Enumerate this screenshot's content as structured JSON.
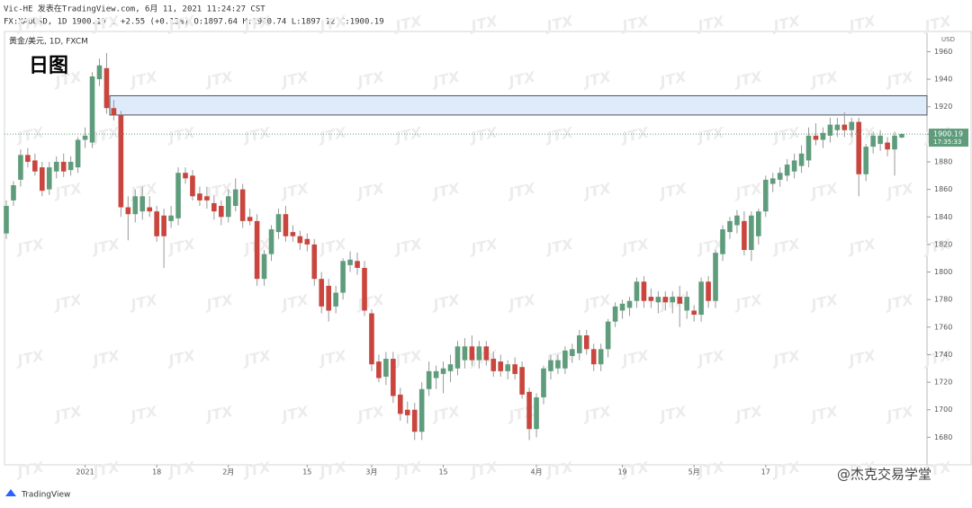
{
  "header": {
    "publisher": "Vic-HE 发表在TradingView.com, 6月 11, 2021 11:24:27 CST",
    "symbol_line": "FX:XAUUSD, 1D 1900.19 ▲ +2.55 (+0.13%) O:1897.64 H:1900.74 L:1897.12 C:1900.19"
  },
  "chart_data": {
    "type": "candlestick",
    "title": "黄金/美元, 1D, FXCM",
    "annotation": "日图",
    "y_axis_label": "USD",
    "price_time": "17:35:33",
    "watermark": "JTX",
    "credit": "@杰克交易学堂",
    "logo": "TradingView",
    "up_color": "#5e9c7b",
    "down_color": "#c9453d",
    "zone_color": "#ddebfb",
    "zone": [
      1914,
      1928
    ],
    "ylim": [
      1660,
      1974
    ],
    "yticks": [
      1680,
      1700,
      1720,
      1740,
      1760,
      1780,
      1800,
      1820,
      1840,
      1860,
      1880,
      1900,
      1920,
      1940,
      1960
    ],
    "categories": [
      null,
      null,
      null,
      null,
      null,
      null,
      null,
      null,
      null,
      null,
      null,
      "2021",
      null,
      null,
      null,
      null,
      null,
      null,
      null,
      null,
      null,
      "18",
      null,
      null,
      null,
      null,
      null,
      null,
      null,
      null,
      null,
      "2月",
      null,
      null,
      null,
      null,
      null,
      null,
      null,
      null,
      null,
      null,
      "15",
      null,
      null,
      null,
      null,
      null,
      null,
      null,
      null,
      "3月",
      null,
      null,
      null,
      null,
      null,
      null,
      null,
      null,
      null,
      "15",
      null,
      null,
      null,
      null,
      null,
      null,
      null,
      null,
      null,
      null,
      null,
      null,
      "4月",
      null,
      null,
      null,
      null,
      null,
      null,
      null,
      null,
      null,
      null,
      null,
      "19",
      null,
      null,
      null,
      null,
      null,
      null,
      null,
      null,
      null,
      "5月",
      null,
      null,
      null,
      null,
      null,
      null,
      null,
      null,
      null,
      "17",
      null,
      null,
      null,
      null,
      null,
      null,
      null,
      null,
      null,
      null,
      null,
      null,
      null,
      null,
      null,
      null,
      null,
      null,
      null
    ],
    "open": [
      1828,
      1852,
      1867,
      1885,
      1881,
      1876,
      1860,
      1873,
      1880,
      1874,
      1876,
      1896,
      1894,
      1940,
      1948,
      1919,
      1914,
      1847,
      1842,
      1844,
      1847,
      1844,
      1841,
      1837,
      1839,
      1872,
      1870,
      1857,
      1855,
      1850,
      1848,
      1840,
      1848,
      1860,
      1840,
      1837,
      1795,
      1813,
      1829,
      1842,
      1829,
      1826,
      1824,
      1820,
      1795,
      1790,
      1775,
      1785,
      1805,
      1808,
      1803,
      1770,
      1735,
      1724,
      1737,
      1711,
      1700,
      1700,
      1684,
      1715,
      1723,
      1726,
      1728,
      1730,
      1736,
      1746,
      1736,
      1746,
      1737,
      1735,
      1728,
      1733,
      1731,
      1713,
      1686,
      1709,
      1728,
      1730,
      1730,
      1739,
      1741,
      1754,
      1744,
      1733,
      1744,
      1764,
      1772,
      1774,
      1779,
      1793,
      1782,
      1778,
      1782,
      1778,
      1782,
      1772,
      1772,
      1769,
      1793,
      1779,
      1813,
      1829,
      1834,
      1837,
      1816,
      1826,
      1844,
      1864,
      1867,
      1870,
      1873,
      1877,
      1881,
      1899,
      1896,
      1899,
      1903,
      1907,
      1903,
      1909,
      1871,
      1891,
      1893,
      1894,
      1889,
      1897.64
    ],
    "high": [
      1852,
      1866,
      1889,
      1890,
      1886,
      1880,
      1880,
      1884,
      1886,
      1884,
      1898,
      1905,
      1945,
      1955,
      1959,
      1925,
      1917,
      1855,
      1860,
      1862,
      1855,
      1848,
      1846,
      1848,
      1876,
      1876,
      1874,
      1862,
      1862,
      1856,
      1852,
      1860,
      1868,
      1864,
      1846,
      1842,
      1816,
      1834,
      1846,
      1848,
      1834,
      1830,
      1828,
      1824,
      1800,
      1795,
      1790,
      1810,
      1815,
      1814,
      1808,
      1773,
      1740,
      1742,
      1742,
      1716,
      1706,
      1705,
      1720,
      1735,
      1732,
      1735,
      1740,
      1750,
      1752,
      1754,
      1750,
      1750,
      1742,
      1740,
      1736,
      1738,
      1735,
      1716,
      1712,
      1732,
      1740,
      1740,
      1746,
      1748,
      1758,
      1758,
      1748,
      1748,
      1766,
      1778,
      1780,
      1782,
      1796,
      1797,
      1788,
      1786,
      1786,
      1786,
      1790,
      1786,
      1776,
      1796,
      1797,
      1816,
      1834,
      1840,
      1845,
      1844,
      1844,
      1846,
      1870,
      1872,
      1876,
      1882,
      1886,
      1892,
      1905,
      1908,
      1905,
      1912,
      1912,
      1916,
      1912,
      1912,
      1893,
      1902,
      1903,
      1898,
      1902,
      1900.74
    ],
    "low": [
      1824,
      1848,
      1862,
      1876,
      1870,
      1855,
      1856,
      1868,
      1869,
      1870,
      1872,
      1890,
      1890,
      1935,
      1915,
      1910,
      1840,
      1823,
      1836,
      1838,
      1840,
      1822,
      1803,
      1832,
      1834,
      1864,
      1852,
      1848,
      1846,
      1838,
      1834,
      1836,
      1844,
      1832,
      1834,
      1790,
      1790,
      1808,
      1824,
      1822,
      1822,
      1816,
      1815,
      1790,
      1770,
      1764,
      1770,
      1780,
      1800,
      1798,
      1768,
      1728,
      1720,
      1718,
      1705,
      1692,
      1690,
      1678,
      1678,
      1710,
      1715,
      1712,
      1720,
      1725,
      1730,
      1732,
      1730,
      1732,
      1724,
      1724,
      1722,
      1722,
      1708,
      1678,
      1680,
      1704,
      1722,
      1726,
      1726,
      1734,
      1736,
      1740,
      1728,
      1728,
      1738,
      1760,
      1766,
      1768,
      1774,
      1774,
      1774,
      1770,
      1772,
      1770,
      1760,
      1766,
      1764,
      1764,
      1774,
      1774,
      1808,
      1824,
      1828,
      1812,
      1808,
      1820,
      1840,
      1858,
      1862,
      1866,
      1868,
      1872,
      1876,
      1892,
      1890,
      1894,
      1898,
      1898,
      1898,
      1855,
      1866,
      1886,
      1888,
      1884,
      1870,
      1897.12
    ],
    "close": [
      1848,
      1863,
      1885,
      1880,
      1873,
      1859,
      1876,
      1880,
      1873,
      1880,
      1896,
      1899,
      1942,
      1950,
      1919,
      1914,
      1847,
      1842,
      1855,
      1855,
      1844,
      1826,
      1826,
      1841,
      1872,
      1868,
      1855,
      1852,
      1852,
      1844,
      1840,
      1855,
      1860,
      1837,
      1837,
      1795,
      1813,
      1831,
      1842,
      1826,
      1826,
      1821,
      1820,
      1795,
      1775,
      1772,
      1785,
      1808,
      1809,
      1803,
      1772,
      1733,
      1723,
      1737,
      1710,
      1697,
      1696,
      1684,
      1715,
      1728,
      1728,
      1730,
      1733,
      1746,
      1746,
      1736,
      1746,
      1736,
      1728,
      1728,
      1733,
      1726,
      1711,
      1686,
      1709,
      1730,
      1736,
      1736,
      1743,
      1744,
      1754,
      1744,
      1733,
      1744,
      1764,
      1775,
      1777,
      1779,
      1793,
      1779,
      1779,
      1782,
      1778,
      1782,
      1777,
      1782,
      1769,
      1793,
      1779,
      1814,
      1831,
      1837,
      1841,
      1816,
      1841,
      1844,
      1867,
      1868,
      1872,
      1878,
      1881,
      1886,
      1899,
      1896,
      1901,
      1907,
      1907,
      1903,
      1909,
      1871,
      1891,
      1899,
      1899,
      1889,
      1899,
      1900.19
    ]
  }
}
